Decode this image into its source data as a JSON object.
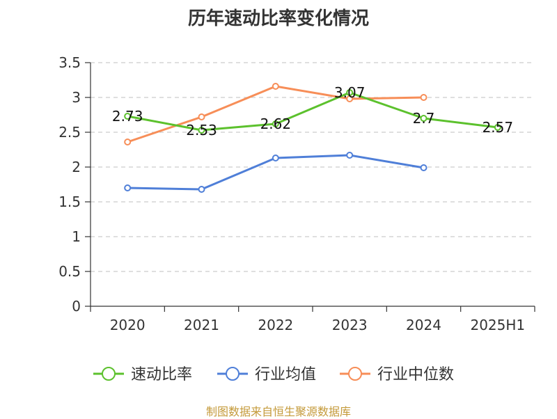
{
  "chart_data": {
    "type": "line",
    "title": "历年速动比率变化情况",
    "categories": [
      "2020",
      "2021",
      "2022",
      "2023",
      "2024",
      "2025H1"
    ],
    "ylim": [
      0,
      3.5
    ],
    "yticks": [
      "0",
      "0.5",
      "1",
      "1.5",
      "2",
      "2.5",
      "3",
      "3.5"
    ],
    "grid": true,
    "legend_position": "bottom",
    "series": [
      {
        "name": "速动比率",
        "color": "#5cc12d",
        "values": [
          2.73,
          2.53,
          2.62,
          3.07,
          2.7,
          2.57
        ],
        "labels": [
          "2.73",
          "2.53",
          "2.62",
          "3.07",
          "2.7",
          "2.57"
        ]
      },
      {
        "name": "行业均值",
        "color": "#4f7fd8",
        "values": [
          1.7,
          1.68,
          2.13,
          2.17,
          1.99,
          null
        ]
      },
      {
        "name": "行业中位数",
        "color": "#f78e58",
        "values": [
          2.36,
          2.72,
          3.16,
          2.98,
          3.0,
          null
        ]
      }
    ]
  },
  "source_note": "制图数据来自恒生聚源数据库"
}
